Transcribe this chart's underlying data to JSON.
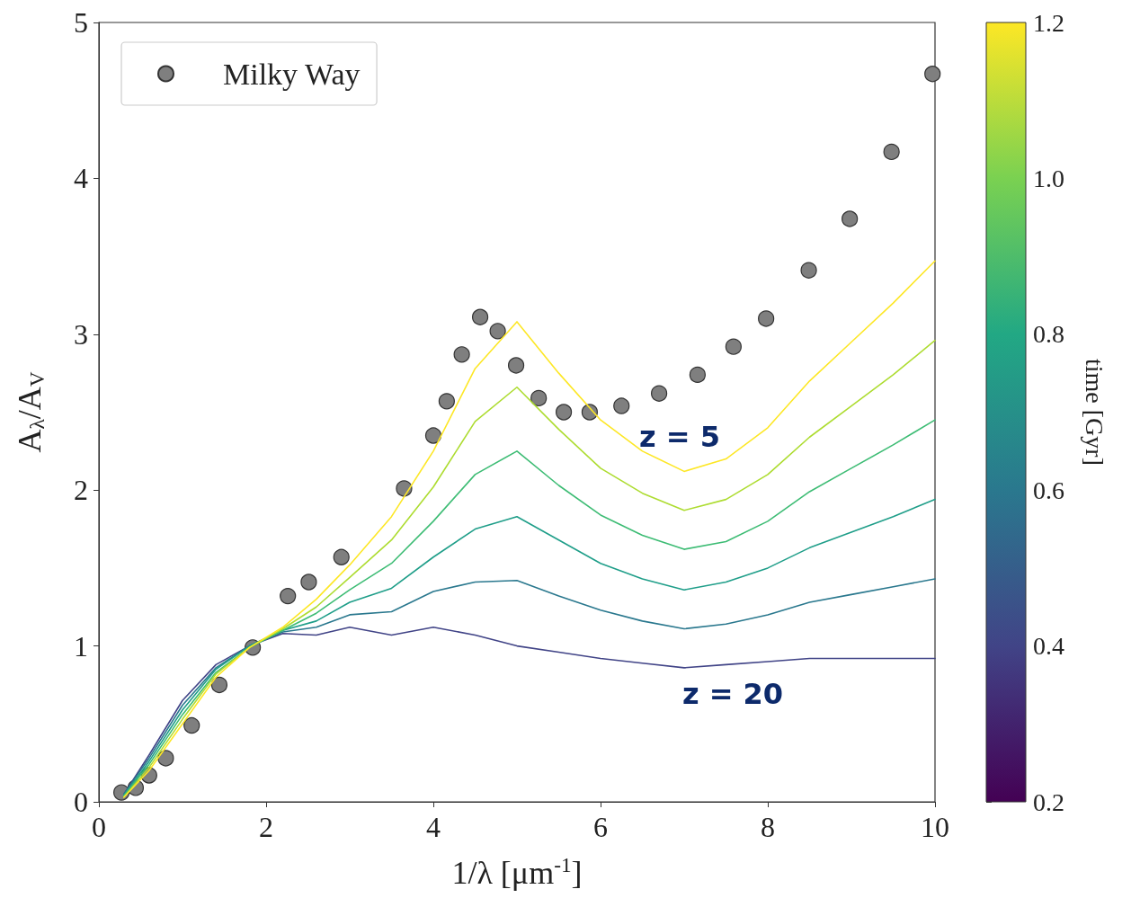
{
  "chart_data": {
    "type": "line",
    "xlabel": "1/λ [μm$^{-1}$]",
    "ylabel": "A$_{λ}$/A$_{V}$",
    "clabel": "time [Gyr]",
    "clim": [
      0.2,
      1.2
    ],
    "cticks": [
      0.2,
      0.4,
      0.6,
      0.8,
      {
        "value": 1,
        "label": "1.0"
      },
      1.2
    ],
    "xlim": [
      0,
      10
    ],
    "xticks": [
      0,
      2,
      4,
      6,
      8,
      10
    ],
    "ylim": [
      0,
      5
    ],
    "yticks": [
      0,
      1,
      2,
      3,
      4,
      5
    ],
    "grid": false,
    "legend": "top left",
    "line_style": "solid",
    "x": [
      0.3,
      0.6,
      1.0,
      1.4,
      1.8,
      2.2,
      2.6,
      3.0,
      3.5,
      4.0,
      4.5,
      5.0,
      5.5,
      6.0,
      6.5,
      7.0,
      7.5,
      8.0,
      8.5,
      9.0,
      9.5,
      10
    ],
    "series": [
      {
        "color": "#414487",
        "values": [
          0.05,
          0.3,
          0.65,
          0.88,
          1.0,
          1.08,
          1.07,
          1.12,
          1.07,
          1.12,
          1.07,
          1.0,
          0.96,
          0.92,
          0.89,
          0.86,
          0.88,
          0.9,
          0.92,
          0.92,
          0.92,
          0.92
        ]
      },
      {
        "color": "#2a788e",
        "values": [
          0.05,
          0.28,
          0.62,
          0.86,
          1.0,
          1.09,
          1.12,
          1.2,
          1.22,
          1.35,
          1.41,
          1.42,
          1.32,
          1.23,
          1.16,
          1.11,
          1.14,
          1.2,
          1.28,
          1.33,
          1.38,
          1.43
        ]
      },
      {
        "color": "#1f9e89",
        "values": [
          0.04,
          0.26,
          0.59,
          0.85,
          1.0,
          1.1,
          1.16,
          1.28,
          1.37,
          1.57,
          1.75,
          1.83,
          1.68,
          1.53,
          1.43,
          1.36,
          1.41,
          1.5,
          1.63,
          1.73,
          1.83,
          1.94
        ]
      },
      {
        "color": "#3dbc74",
        "values": [
          0.04,
          0.24,
          0.56,
          0.83,
          0.99,
          1.1,
          1.21,
          1.36,
          1.53,
          1.8,
          2.1,
          2.25,
          2.03,
          1.84,
          1.71,
          1.62,
          1.67,
          1.8,
          1.99,
          2.14,
          2.29,
          2.45
        ]
      },
      {
        "color": "#addc30",
        "values": [
          0.03,
          0.22,
          0.53,
          0.82,
          0.99,
          1.11,
          1.25,
          1.44,
          1.68,
          2.02,
          2.44,
          2.66,
          2.39,
          2.14,
          1.98,
          1.87,
          1.94,
          2.1,
          2.34,
          2.54,
          2.74,
          2.96
        ]
      },
      {
        "color": "#fde725",
        "values": [
          0.03,
          0.2,
          0.5,
          0.8,
          0.99,
          1.12,
          1.3,
          1.52,
          1.83,
          2.25,
          2.78,
          3.08,
          2.75,
          2.45,
          2.25,
          2.12,
          2.2,
          2.4,
          2.7,
          2.95,
          3.2,
          3.47
        ]
      },
      {
        "type": "scatter",
        "name": "Milky Way",
        "color": "#7f7f7f",
        "marker": "circle",
        "x": [
          0.27,
          0.44,
          0.6,
          0.8,
          1.11,
          1.44,
          1.84,
          2.26,
          2.51,
          2.9,
          3.65,
          4.0,
          4.16,
          4.34,
          4.56,
          4.77,
          4.99,
          5.26,
          5.56,
          5.87,
          6.25,
          6.7,
          7.16,
          7.59,
          7.98,
          8.49,
          8.98,
          9.48,
          9.97
        ],
        "values": [
          0.06,
          0.09,
          0.17,
          0.28,
          0.49,
          0.75,
          0.99,
          1.32,
          1.41,
          1.57,
          2.01,
          2.35,
          2.57,
          2.87,
          3.11,
          3.02,
          2.8,
          2.59,
          2.5,
          2.5,
          2.54,
          2.62,
          2.74,
          2.92,
          3.1,
          3.41,
          3.74,
          4.17,
          4.67
        ]
      }
    ],
    "annotations": [
      "z = 5",
      "z = 20"
    ]
  }
}
